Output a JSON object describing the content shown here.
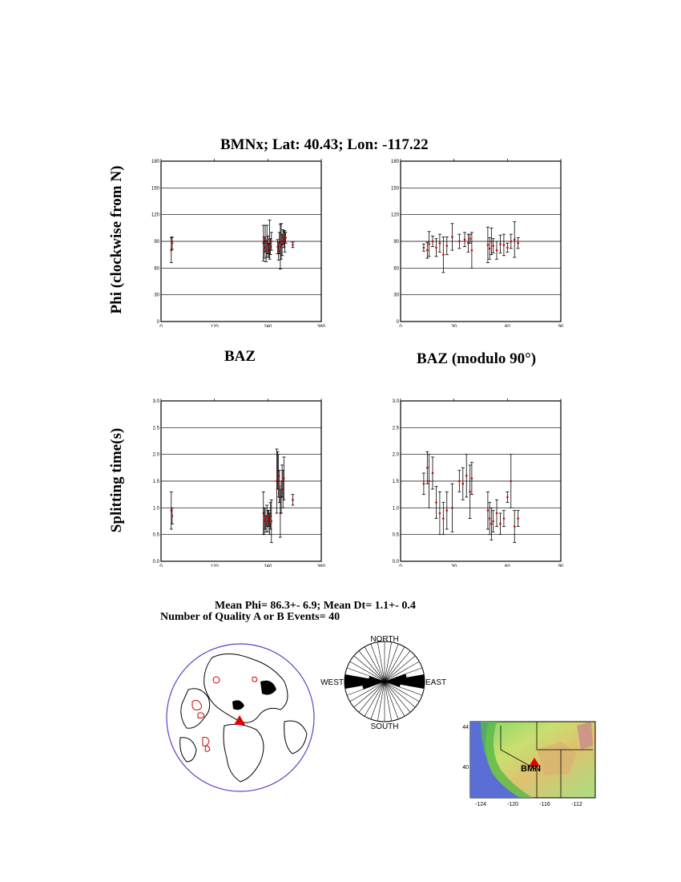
{
  "page_title": "BMNx; Lat:  40.43;  Lon: -117.22",
  "ylabels": {
    "top": "Phi (clockwise from N)",
    "bottom": "Splitting time(s)"
  },
  "xlabels": {
    "left": "BAZ",
    "right": "BAZ (modulo 90°)"
  },
  "stats": {
    "line1": "Mean Phi= 86.3+-  6.9; Mean Dt=  1.1+-  0.4",
    "line2": "Number of Quality A  or B Events= 40"
  },
  "rose": {
    "north": "NORTH",
    "south": "SOUTH",
    "east": "EAST",
    "west": "WEST"
  },
  "map": {
    "station": "BMN",
    "yticks": [
      "44",
      "40"
    ],
    "xticks": [
      "-124",
      "-120",
      "-116",
      "-112"
    ]
  },
  "colors": {
    "point": "#d00000",
    "errorbar": "#000000",
    "ring": "#6a3cc8",
    "station": "#e00000"
  },
  "chart_data": [
    {
      "type": "scatter",
      "title": "",
      "xlabel": "BAZ",
      "ylabel": "Phi (clockwise from N)",
      "xlim": [
        0,
        360
      ],
      "ylim": [
        0,
        180
      ],
      "xticks": [
        "0",
        "120",
        "240",
        "360"
      ],
      "yticks": [
        "0",
        "30",
        "60",
        "90",
        "120",
        "150",
        "180"
      ],
      "grid": true,
      "points": [
        {
          "x": 23,
          "y": 80,
          "err": 14
        },
        {
          "x": 25,
          "y": 88,
          "err": 7
        },
        {
          "x": 230,
          "y": 88,
          "err": 20
        },
        {
          "x": 232,
          "y": 83,
          "err": 12
        },
        {
          "x": 234,
          "y": 93,
          "err": 15
        },
        {
          "x": 236,
          "y": 79,
          "err": 12
        },
        {
          "x": 238,
          "y": 90,
          "err": 18
        },
        {
          "x": 240,
          "y": 86,
          "err": 10
        },
        {
          "x": 242,
          "y": 80,
          "err": 8
        },
        {
          "x": 244,
          "y": 92,
          "err": 22
        },
        {
          "x": 246,
          "y": 84,
          "err": 9
        },
        {
          "x": 248,
          "y": 90,
          "err": 10
        },
        {
          "x": 262,
          "y": 84,
          "err": 8
        },
        {
          "x": 264,
          "y": 79,
          "err": 10
        },
        {
          "x": 266,
          "y": 88,
          "err": 12
        },
        {
          "x": 268,
          "y": 84,
          "err": 25
        },
        {
          "x": 270,
          "y": 90,
          "err": 20
        },
        {
          "x": 272,
          "y": 86,
          "err": 12
        },
        {
          "x": 274,
          "y": 95,
          "err": 8
        },
        {
          "x": 276,
          "y": 92,
          "err": 9
        },
        {
          "x": 278,
          "y": 90,
          "err": 12
        },
        {
          "x": 280,
          "y": 94,
          "err": 6
        },
        {
          "x": 296,
          "y": 86,
          "err": 3
        }
      ]
    },
    {
      "type": "scatter",
      "title": "",
      "xlabel": "BAZ (modulo 90°)",
      "ylabel": "",
      "xlim": [
        0,
        90
      ],
      "ylim": [
        0,
        180
      ],
      "xticks": [
        "0",
        "30",
        "60",
        "90"
      ],
      "yticks": [
        "0",
        "30",
        "60",
        "90",
        "120",
        "150",
        "180"
      ],
      "grid": true,
      "points": [
        {
          "x": 13,
          "y": 83,
          "err": 4
        },
        {
          "x": 15,
          "y": 80,
          "err": 9
        },
        {
          "x": 16,
          "y": 87,
          "err": 14
        },
        {
          "x": 18,
          "y": 90,
          "err": 6
        },
        {
          "x": 20,
          "y": 83,
          "err": 10
        },
        {
          "x": 22,
          "y": 88,
          "err": 10
        },
        {
          "x": 24,
          "y": 75,
          "err": 20
        },
        {
          "x": 26,
          "y": 85,
          "err": 10
        },
        {
          "x": 29,
          "y": 95,
          "err": 15
        },
        {
          "x": 33,
          "y": 90,
          "err": 8
        },
        {
          "x": 36,
          "y": 92,
          "err": 8
        },
        {
          "x": 38,
          "y": 88,
          "err": 10
        },
        {
          "x": 39,
          "y": 93,
          "err": 5
        },
        {
          "x": 40,
          "y": 80,
          "err": 20
        },
        {
          "x": 49,
          "y": 86,
          "err": 20
        },
        {
          "x": 50,
          "y": 82,
          "err": 12
        },
        {
          "x": 51,
          "y": 90,
          "err": 15
        },
        {
          "x": 52,
          "y": 85,
          "err": 8
        },
        {
          "x": 54,
          "y": 80,
          "err": 10
        },
        {
          "x": 56,
          "y": 87,
          "err": 10
        },
        {
          "x": 58,
          "y": 86,
          "err": 12
        },
        {
          "x": 60,
          "y": 83,
          "err": 5
        },
        {
          "x": 62,
          "y": 90,
          "err": 8
        },
        {
          "x": 64,
          "y": 92,
          "err": 20
        },
        {
          "x": 66,
          "y": 88,
          "err": 6
        }
      ]
    },
    {
      "type": "scatter",
      "title": "",
      "xlabel": "BAZ",
      "ylabel": "Splitting time(s)",
      "xlim": [
        0,
        360
      ],
      "ylim": [
        0,
        3.0
      ],
      "xticks": [
        "0",
        "120",
        "240",
        "360"
      ],
      "yticks": [
        "0.0",
        "0.5",
        "1.0",
        "1.5",
        "2.0",
        "2.5",
        "3.0"
      ],
      "grid": true,
      "points": [
        {
          "x": 23,
          "y": 0.95,
          "err": 0.35
        },
        {
          "x": 25,
          "y": 0.85,
          "err": 0.15
        },
        {
          "x": 230,
          "y": 0.9,
          "err": 0.4
        },
        {
          "x": 232,
          "y": 0.75,
          "err": 0.25
        },
        {
          "x": 234,
          "y": 0.8,
          "err": 0.2
        },
        {
          "x": 236,
          "y": 0.7,
          "err": 0.15
        },
        {
          "x": 238,
          "y": 0.85,
          "err": 0.2
        },
        {
          "x": 240,
          "y": 0.75,
          "err": 0.2
        },
        {
          "x": 242,
          "y": 0.8,
          "err": 0.15
        },
        {
          "x": 244,
          "y": 0.7,
          "err": 0.2
        },
        {
          "x": 246,
          "y": 0.85,
          "err": 0.25
        },
        {
          "x": 248,
          "y": 0.75,
          "err": 0.4
        },
        {
          "x": 260,
          "y": 1.5,
          "err": 0.6
        },
        {
          "x": 262,
          "y": 1.7,
          "err": 0.35
        },
        {
          "x": 264,
          "y": 1.6,
          "err": 0.4
        },
        {
          "x": 266,
          "y": 1.4,
          "err": 0.3
        },
        {
          "x": 268,
          "y": 0.9,
          "err": 0.45
        },
        {
          "x": 270,
          "y": 1.2,
          "err": 0.3
        },
        {
          "x": 272,
          "y": 1.5,
          "err": 0.3
        },
        {
          "x": 274,
          "y": 1.35,
          "err": 0.35
        },
        {
          "x": 276,
          "y": 1.55,
          "err": 0.4
        },
        {
          "x": 296,
          "y": 1.15,
          "err": 0.1
        }
      ]
    },
    {
      "type": "scatter",
      "title": "",
      "xlabel": "BAZ (modulo 90°)",
      "ylabel": "",
      "xlim": [
        0,
        90
      ],
      "ylim": [
        0,
        3.0
      ],
      "xticks": [
        "0",
        "30",
        "60",
        "90"
      ],
      "yticks": [
        "0.0",
        "0.5",
        "1.0",
        "1.5",
        "2.0",
        "2.5",
        "3.0"
      ],
      "grid": true,
      "points": [
        {
          "x": 13,
          "y": 1.45,
          "err": 0.2
        },
        {
          "x": 15,
          "y": 1.75,
          "err": 0.3
        },
        {
          "x": 16,
          "y": 1.5,
          "err": 0.5
        },
        {
          "x": 18,
          "y": 1.65,
          "err": 0.3
        },
        {
          "x": 20,
          "y": 1.1,
          "err": 0.3
        },
        {
          "x": 22,
          "y": 0.9,
          "err": 0.4
        },
        {
          "x": 24,
          "y": 0.8,
          "err": 0.3
        },
        {
          "x": 26,
          "y": 0.95,
          "err": 0.35
        },
        {
          "x": 29,
          "y": 1.0,
          "err": 0.45
        },
        {
          "x": 33,
          "y": 1.5,
          "err": 0.2
        },
        {
          "x": 35,
          "y": 1.45,
          "err": 0.3
        },
        {
          "x": 37,
          "y": 1.6,
          "err": 0.4
        },
        {
          "x": 39,
          "y": 1.3,
          "err": 0.5
        },
        {
          "x": 40,
          "y": 1.55,
          "err": 0.3
        },
        {
          "x": 49,
          "y": 0.95,
          "err": 0.35
        },
        {
          "x": 50,
          "y": 0.8,
          "err": 0.3
        },
        {
          "x": 51,
          "y": 0.7,
          "err": 0.3
        },
        {
          "x": 52,
          "y": 0.75,
          "err": 0.2
        },
        {
          "x": 54,
          "y": 0.9,
          "err": 0.25
        },
        {
          "x": 56,
          "y": 0.7,
          "err": 0.2
        },
        {
          "x": 58,
          "y": 0.8,
          "err": 0.15
        },
        {
          "x": 60,
          "y": 1.2,
          "err": 0.1
        },
        {
          "x": 62,
          "y": 1.5,
          "err": 0.5
        },
        {
          "x": 64,
          "y": 0.65,
          "err": 0.3
        },
        {
          "x": 66,
          "y": 0.8,
          "err": 0.15
        }
      ]
    }
  ]
}
